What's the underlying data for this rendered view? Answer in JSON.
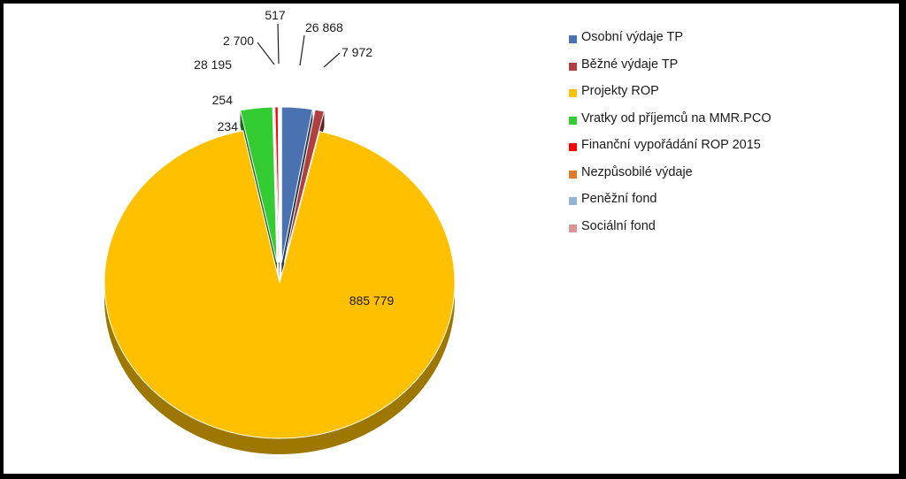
{
  "chart_data": {
    "type": "pie",
    "title": "",
    "categories": [
      "Osobní výdaje TP",
      "Běžné výdaje TP",
      "Projekty ROP",
      "Vratky od příjemců na MMR.PCO",
      "Finanční vypořádání ROP 2015",
      "Nezpůsobilé výdaje",
      "Peněžní fond",
      "Sociální fond"
    ],
    "values": [
      26868,
      7972,
      885779,
      28195,
      2700,
      517,
      254,
      234
    ],
    "data_labels": [
      "26 868",
      "7 972",
      "885 779",
      "28 195",
      "2 700",
      "517",
      "254",
      "234"
    ],
    "colors": [
      "#4a72b0",
      "#b0403f",
      "#ffc000",
      "#33cc33",
      "#ff0000",
      "#e07b2a",
      "#95b3d7",
      "#da9694"
    ],
    "exploded": [
      true,
      true,
      false,
      true,
      true,
      true,
      true,
      true
    ],
    "legend": "right",
    "style": "3d"
  }
}
